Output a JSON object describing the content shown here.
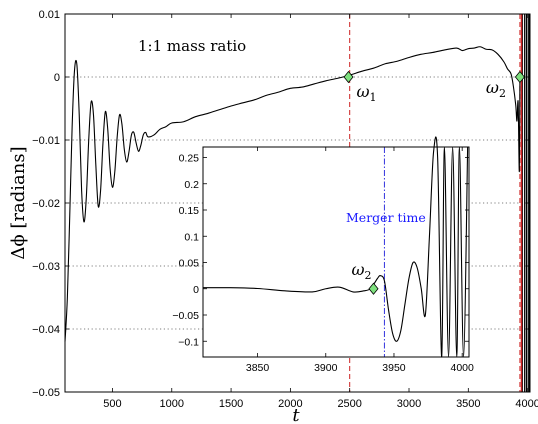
{
  "chart_data": [
    {
      "type": "line",
      "title": "",
      "xlabel": "t",
      "ylabel": "Δϕ [radians]",
      "xlim": [
        100,
        4020
      ],
      "ylim": [
        -0.05,
        0.01
      ],
      "x_ticks": [
        500,
        1000,
        1500,
        2000,
        2500,
        3000,
        3500,
        4000
      ],
      "y_ticks": [
        -0.05,
        -0.04,
        -0.03,
        -0.02,
        -0.01,
        0,
        0.01
      ],
      "y_tick_labels": [
        "−0.05",
        "−0.04",
        "−0.03",
        "−0.02",
        "−0.01",
        "0",
        "0.01"
      ],
      "x_tick_labels": [
        "500",
        "1000",
        "1500",
        "2000",
        "2500",
        "3000",
        "3500",
        "4000"
      ],
      "grid": "horizontal dotted",
      "annotation": "1:1 mass ratio",
      "vlines": [
        {
          "x": 2500,
          "color": "#cc2222",
          "style": "dashed"
        },
        {
          "x": 3935,
          "color": "#cc2222",
          "style": "dashed"
        }
      ],
      "markers": [
        {
          "label": "ω",
          "sub": "1",
          "x": 2490,
          "y": 0
        },
        {
          "label": "ω",
          "sub": "2",
          "x": 3935,
          "y": 0
        }
      ],
      "series": [
        {
          "x": [
            100,
            120,
            140,
            160,
            180,
            200,
            220,
            240,
            260,
            280,
            300,
            320,
            340,
            360,
            380,
            400,
            420,
            440,
            460,
            480,
            500,
            520,
            540,
            560,
            580,
            600,
            620,
            640,
            660,
            680,
            700,
            720,
            740,
            760,
            780,
            800,
            850,
            900,
            950,
            1000,
            1100,
            1200,
            1300,
            1400,
            1500,
            1600,
            1700,
            1800,
            1900,
            2000,
            2100,
            2200,
            2300,
            2400,
            2500,
            2600,
            2700,
            2800,
            2900,
            3000,
            3100,
            3200,
            3300,
            3400,
            3450,
            3500,
            3550,
            3600,
            3650,
            3700,
            3750,
            3800,
            3830,
            3860,
            3880,
            3900,
            3910,
            3920,
            3930,
            3935
          ],
          "y": [
            -0.042,
            -0.035,
            -0.022,
            -0.008,
            0.001,
            0.002,
            -0.006,
            -0.018,
            -0.023,
            -0.019,
            -0.01,
            -0.004,
            -0.006,
            -0.014,
            -0.0205,
            -0.018,
            -0.0105,
            -0.0055,
            -0.0082,
            -0.0145,
            -0.0175,
            -0.015,
            -0.0095,
            -0.006,
            -0.0075,
            -0.0115,
            -0.0135,
            -0.0118,
            -0.0092,
            -0.0088,
            -0.0105,
            -0.0118,
            -0.0108,
            -0.0092,
            -0.0088,
            -0.0095,
            -0.0092,
            -0.0083,
            -0.0079,
            -0.0073,
            -0.0071,
            -0.0063,
            -0.0058,
            -0.0052,
            -0.0046,
            -0.0041,
            -0.0036,
            -0.0029,
            -0.0024,
            -0.0018,
            -0.0016,
            -0.0011,
            -0.0006,
            -0.0002,
            0.0003,
            0.0009,
            0.0014,
            0.0021,
            0.0025,
            0.0031,
            0.0036,
            0.0039,
            0.0043,
            0.0046,
            0.0042,
            0.0045,
            0.0046,
            0.0048,
            0.0044,
            0.0043,
            0.0036,
            0.0024,
            0.0013,
            0.0005,
            -0.0015,
            -0.0045,
            -0.007,
            -0.004,
            -0.015,
            0.0
          ]
        }
      ]
    },
    {
      "type": "line",
      "title": "",
      "xlabel": "",
      "ylabel": "",
      "xlim": [
        3810,
        4005
      ],
      "ylim": [
        -0.13,
        0.27
      ],
      "x_ticks": [
        3850,
        3900,
        3950,
        4000
      ],
      "x_tick_labels": [
        "3850",
        "3900",
        "3950",
        "4000"
      ],
      "y_ticks": [
        -0.1,
        -0.05,
        0,
        0.05,
        0.1,
        0.15,
        0.2,
        0.25
      ],
      "y_tick_labels": [
        "−0.1",
        "−0.05",
        "0",
        "0.05",
        "0.1",
        "0.15",
        "0.2",
        "0.25"
      ],
      "grid": "none",
      "annotation": "Merger time",
      "vlines": [
        {
          "x": 3943,
          "color": "#3333dd",
          "style": "dashdot"
        }
      ],
      "markers": [
        {
          "label": "ω",
          "sub": "2",
          "x": 3935,
          "y": 0
        }
      ],
      "series": [
        {
          "x": [
            3810,
            3830,
            3850,
            3870,
            3890,
            3900,
            3910,
            3920,
            3928,
            3933,
            3936,
            3938,
            3940,
            3943,
            3946,
            3949,
            3952,
            3955,
            3958,
            3961,
            3964,
            3967,
            3970,
            3973,
            3976,
            3979,
            3982,
            3985,
            3987,
            3990,
            3993,
            3996,
            3998,
            4001,
            4004
          ],
          "y": [
            0.002,
            0.002,
            0.0005,
            -0.004,
            -0.006,
            0.0,
            0.003,
            -0.006,
            -0.004,
            0.0,
            0.012,
            0.02,
            0.025,
            0.015,
            -0.04,
            -0.085,
            -0.1,
            -0.08,
            -0.03,
            0.02,
            0.05,
            0.04,
            0.0,
            -0.05,
            0.1,
            0.26,
            0.25,
            -0.13,
            0.27,
            -0.13,
            0.27,
            -0.13,
            0.27,
            -0.13,
            0.27
          ]
        }
      ]
    }
  ]
}
